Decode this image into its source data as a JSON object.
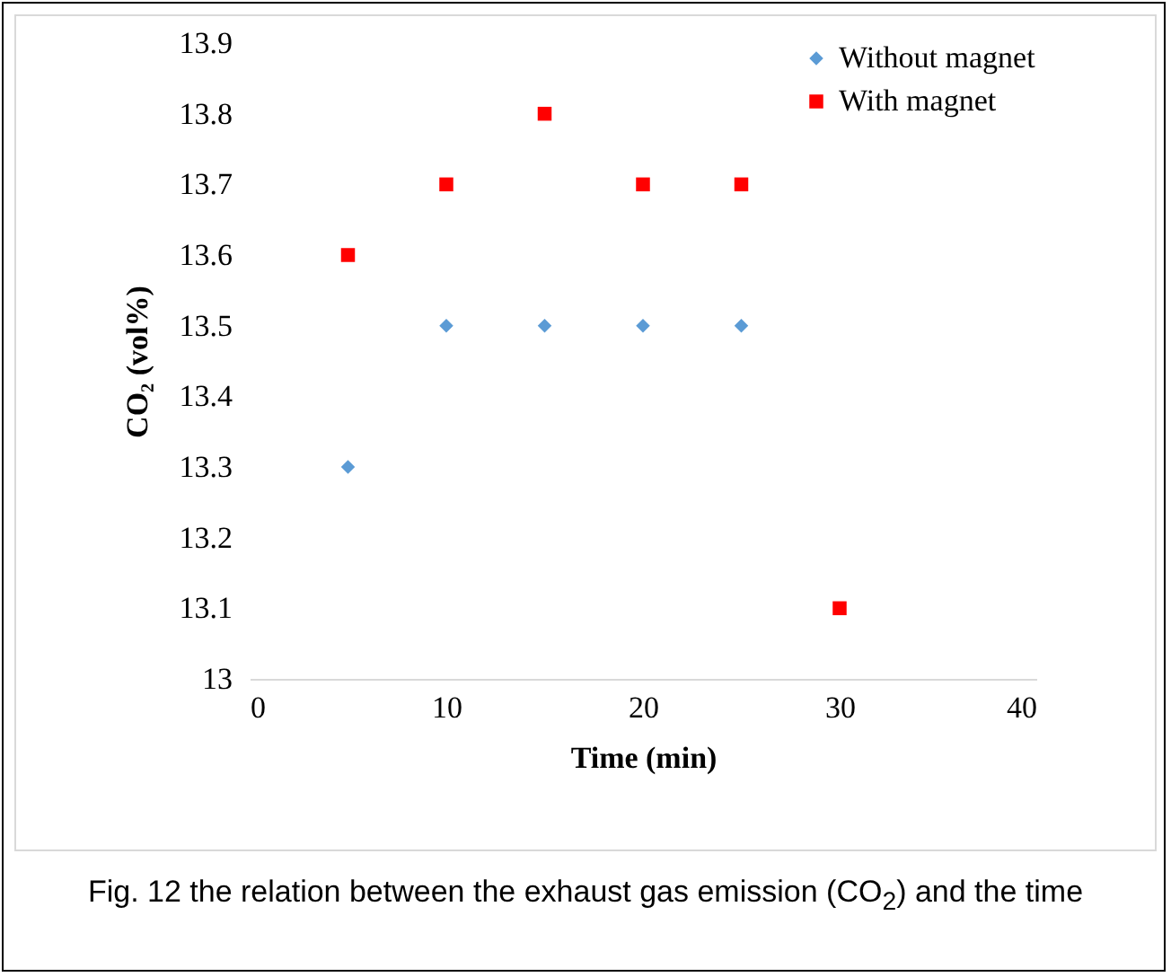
{
  "chart_data": {
    "type": "scatter",
    "xlabel": "Time (min)",
    "ylabel": "CO₂ (vol%)",
    "x": [
      5,
      10,
      15,
      20,
      25,
      30
    ],
    "series": [
      {
        "name": "Without magnet",
        "color": "#5b9bd5",
        "marker": "diamond",
        "values": [
          13.3,
          13.5,
          13.5,
          13.5,
          13.5,
          null
        ]
      },
      {
        "name": "With magnet",
        "color": "#ff0000",
        "marker": "square",
        "values": [
          13.6,
          13.7,
          13.8,
          13.7,
          13.7,
          13.1
        ]
      }
    ],
    "xlim": [
      0,
      40
    ],
    "xticks": [
      0,
      10,
      20,
      30,
      40
    ],
    "ylim": [
      13,
      13.9
    ],
    "yticks": [
      13,
      13.1,
      13.2,
      13.3,
      13.4,
      13.5,
      13.6,
      13.7,
      13.8,
      13.9
    ],
    "grid": false,
    "legend": "top right",
    "annotations": [
      "Fig. 12 the relation between the exhaust gas emission (CO$_{2}$) and the time"
    ]
  }
}
